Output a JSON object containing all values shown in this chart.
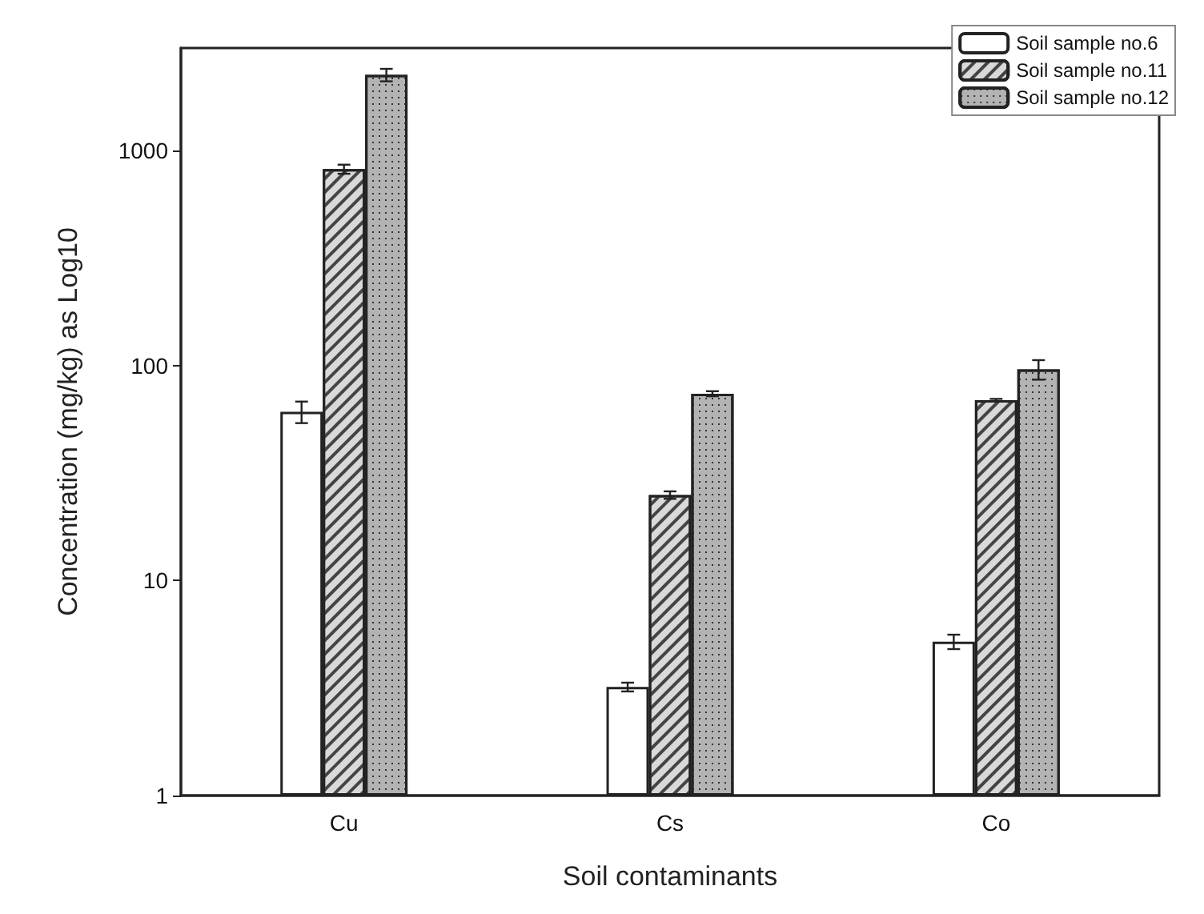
{
  "chart_data": {
    "type": "bar",
    "xlabel": "Soil contaminants",
    "ylabel": "Concentration (mg/kg) as Log10",
    "categories": [
      "Cu",
      "Cs",
      "Co"
    ],
    "series": [
      {
        "name": "Soil sample no.6",
        "color": "#ffffff",
        "values": [
          61,
          3.2,
          5.2
        ],
        "errors": [
          7,
          0.15,
          0.4
        ]
      },
      {
        "name": "Soil sample no.11",
        "color": "#d9d9d9",
        "values": [
          820,
          25,
          69
        ],
        "errors": [
          40,
          1,
          1
        ]
      },
      {
        "name": "Soil sample no.12",
        "color": "#b3b3b3",
        "values": [
          2250,
          74,
          96
        ],
        "errors": [
          150,
          2,
          10
        ]
      }
    ],
    "log": "y",
    "ylim": [
      1,
      3000
    ],
    "yticks": [
      1,
      10,
      100,
      1000
    ],
    "grid": false,
    "legend": "top right"
  }
}
